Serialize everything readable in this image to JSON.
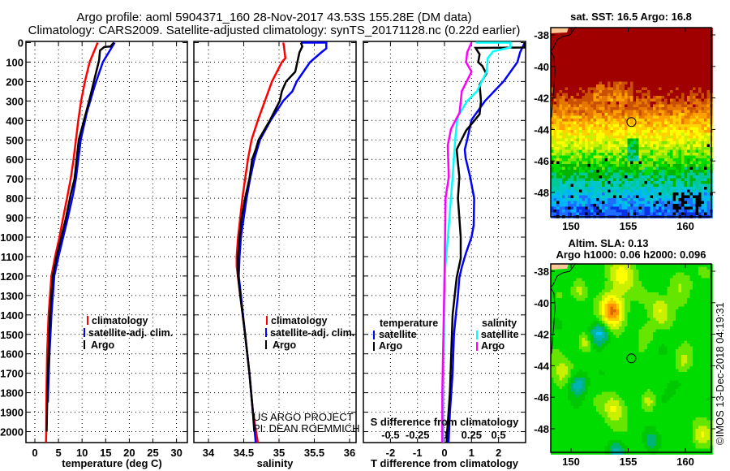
{
  "header": {
    "line1": "Argo profile: aoml 5904371_160 28-Nov-2017 43.53S 155.28E (DM data)",
    "line2": "Climatology: CARS2009. Satellite-adjusted climatology: synTS_20171128.nc (0.22d earlier)"
  },
  "credits": {
    "project": "US ARGO PROJECT",
    "pi": "PI: DEAN ROEMMICH",
    "stamp": "©IMOS 13-Dec-2018 04:19:31"
  },
  "chart_data": [
    {
      "type": "line",
      "id": "temperature",
      "xlabel": "temperature (deg C)",
      "ylabel": "",
      "xlim": [
        -1.9,
        32
      ],
      "ylim": [
        2056,
        0
      ],
      "xticks": [
        "0",
        "5",
        "10",
        "15",
        "20",
        "25",
        "30"
      ],
      "yticks": [
        "0",
        "100",
        "200",
        "300",
        "400",
        "500",
        "600",
        "700",
        "800",
        "900",
        "1000",
        "1100",
        "1200",
        "1300",
        "1400",
        "1500",
        "1600",
        "1700",
        "1800",
        "1900",
        "2000"
      ],
      "grid": true,
      "legend": {
        "placement": "lower-middle",
        "items": [
          "climatology",
          "satellite-adj. clim.",
          "Argo"
        ]
      },
      "series": [
        {
          "name": "climatology",
          "color": "#ff0000",
          "depth": [
            0,
            100,
            200,
            300,
            400,
            500,
            600,
            700,
            800,
            900,
            1000,
            1100,
            1200,
            1400,
            1600,
            1800,
            2000,
            2056
          ],
          "values": [
            13.3,
            11.6,
            10.6,
            9.8,
            9.2,
            8.7,
            8.2,
            7.6,
            6.8,
            6.0,
            5.2,
            4.3,
            3.5,
            2.9,
            2.6,
            2.45,
            2.4,
            2.35
          ]
        },
        {
          "name": "satellite-adj. clim.",
          "color": "#0000ff",
          "depth": [
            0,
            40,
            100,
            220,
            360,
            500,
            700,
            780,
            900,
            1000,
            1100,
            1200,
            1400,
            1600,
            1800,
            1850
          ],
          "values": [
            16.9,
            15.9,
            14.4,
            12.7,
            11.0,
            9.7,
            8.7,
            8.1,
            7.0,
            6.0,
            5.0,
            4.1,
            3.5,
            3.1,
            2.8,
            2.75
          ]
        },
        {
          "name": "Argo",
          "color": "#000000",
          "depth": [
            0,
            20,
            22,
            40,
            90,
            180,
            300,
            500,
            700,
            780,
            900,
            1000,
            1100,
            1200,
            1400,
            1600,
            1800,
            2000
          ],
          "values": [
            16.7,
            16.0,
            14.7,
            13.8,
            13.6,
            12.7,
            11.5,
            9.3,
            8.4,
            7.6,
            6.6,
            5.6,
            4.6,
            3.8,
            3.2,
            2.9,
            2.65,
            2.5
          ]
        }
      ]
    },
    {
      "type": "line",
      "id": "salinity",
      "xlabel": "salinity",
      "xlim": [
        33.8,
        36.1
      ],
      "ylim": [
        2056,
        0
      ],
      "xticks": [
        "34",
        "34.5",
        "35",
        "35.5",
        "36"
      ],
      "grid": true,
      "legend": {
        "placement": "lower-middle",
        "items": [
          "climatology",
          "satellite-adj. clim.",
          "Argo"
        ]
      },
      "series": [
        {
          "name": "climatology",
          "color": "#ff0000",
          "depth": [
            0,
            20,
            80,
            100,
            200,
            300,
            400,
            500,
            600,
            700,
            800,
            900,
            1000,
            1100,
            1150,
            1300,
            1500,
            1700,
            1900,
            2056
          ],
          "values": [
            35.06,
            35.07,
            35.09,
            35.04,
            34.9,
            34.8,
            34.7,
            34.61,
            34.56,
            34.52,
            34.48,
            34.45,
            34.42,
            34.4,
            34.4,
            34.45,
            34.52,
            34.58,
            34.63,
            34.7
          ]
        },
        {
          "name": "satellite-adj. clim.",
          "color": "#0000ff",
          "depth": [
            0,
            0.1,
            30,
            50,
            100,
            200,
            250,
            300,
            400,
            500,
            600,
            700,
            800,
            900,
            1000,
            1100,
            1200,
            1300,
            1500,
            1700,
            1900,
            2056
          ],
          "values": [
            35.31,
            35.67,
            35.67,
            35.6,
            35.44,
            35.25,
            35.19,
            35.06,
            34.88,
            34.73,
            34.65,
            34.59,
            34.54,
            34.5,
            34.46,
            34.44,
            34.43,
            34.46,
            34.52,
            34.58,
            34.63,
            34.67
          ]
        },
        {
          "name": "Argo",
          "color": "#000000",
          "depth": [
            0,
            20,
            50,
            100,
            150,
            200,
            250,
            300,
            350,
            400,
            500,
            550,
            600,
            700,
            800,
            900,
            1000,
            1100,
            1200,
            1300,
            1500,
            1700,
            1900,
            2000
          ],
          "values": [
            35.31,
            35.33,
            35.29,
            35.26,
            35.23,
            35.1,
            35.04,
            35.01,
            34.94,
            34.87,
            34.71,
            34.67,
            34.62,
            34.58,
            34.52,
            34.47,
            34.44,
            34.42,
            34.42,
            34.45,
            34.52,
            34.58,
            34.63,
            34.65
          ]
        }
      ]
    },
    {
      "type": "line",
      "id": "difference",
      "xlabel": "T difference from climatology",
      "secondary_xlabel": "S difference from climatology",
      "xlim": [
        -3,
        3
      ],
      "s_xlim": [
        -0.75,
        0.75
      ],
      "ylim": [
        2056,
        0
      ],
      "xticks": [
        "-2",
        "-1",
        "0",
        "1",
        "2"
      ],
      "s_xticks": [
        "-0.5",
        "-0.25",
        "0",
        "0.25",
        "0.5"
      ],
      "grid": true,
      "legend": {
        "temperature_title": "temperature",
        "salinity_title": "salinity",
        "items": [
          "satellite",
          "Argo"
        ]
      },
      "series": [
        {
          "name": "temperature satellite",
          "axis": "T",
          "color": "#0000ff",
          "depth": [
            0,
            20,
            50,
            100,
            197,
            300,
            397,
            494,
            550,
            592,
            690,
            800,
            940,
            1000,
            1080,
            1150,
            1208,
            1300,
            1400,
            1500,
            1700,
            1900,
            2056
          ],
          "values": [
            3.0,
            2.9,
            2.8,
            2.7,
            2.2,
            1.5,
            1.0,
            0.85,
            0.75,
            0.78,
            0.95,
            1.1,
            1.08,
            1.0,
            0.8,
            0.65,
            0.55,
            0.5,
            0.42,
            0.35,
            0.3,
            0.2,
            0.15
          ]
        },
        {
          "name": "temperature Argo",
          "axis": "T",
          "color": "#000000",
          "depth": [
            0,
            25,
            27,
            60,
            100,
            120,
            160,
            215,
            300,
            368,
            410,
            452,
            550,
            690,
            800,
            1000,
            1110,
            1208,
            1400,
            1600,
            1800,
            2000,
            2056
          ],
          "values": [
            3.0,
            3.0,
            1.15,
            1.3,
            1.25,
            1.4,
            1.55,
            1.3,
            1.35,
            1.3,
            1.05,
            0.8,
            0.45,
            0.55,
            0.5,
            0.6,
            0.6,
            0.45,
            0.3,
            0.25,
            0.2,
            0.1,
            0.08
          ]
        },
        {
          "name": "salinity satellite",
          "axis": "S",
          "color": "#00ffff",
          "depth": [
            0,
            0.1,
            25,
            45,
            80,
            150,
            250,
            300,
            383,
            494,
            690,
            940,
            1208,
            1500,
            1800,
            2056
          ],
          "values": [
            0.29,
            0.61,
            0.61,
            0.45,
            0.4,
            0.39,
            0.3,
            0.21,
            0.12,
            0.1,
            0.075,
            0.04,
            0.0,
            -0.005,
            -0.01,
            -0.01
          ]
        },
        {
          "name": "salinity Argo",
          "axis": "S",
          "color": "#ff00ff",
          "depth": [
            0,
            50,
            100,
            150,
            250,
            360,
            444,
            530,
            690,
            800,
            1208,
            1500,
            1800,
            2056
          ],
          "values": [
            0.25,
            0.21,
            0.2,
            0.25,
            0.16,
            0.14,
            0.06,
            0.03,
            0.04,
            0.01,
            0.0,
            -0.01,
            -0.02,
            -0.02
          ]
        }
      ]
    },
    {
      "type": "heatmap",
      "id": "sst-map",
      "title": "sat. SST: 16.5 Argo: 16.8",
      "xticks": [
        "150",
        "155",
        "160"
      ],
      "yticks": [
        "-38",
        "-40",
        "-42",
        "-44",
        "-46",
        "-48"
      ],
      "xlim": [
        148.2,
        162.3
      ],
      "ylim": [
        -49.5,
        -37.5
      ],
      "argo_position": {
        "lon": 155.28,
        "lat": -43.53
      }
    },
    {
      "type": "heatmap",
      "id": "sla-map",
      "title": "Altim. SLA: 0.13",
      "subtitle": "Argo h1000: 0.06 h2000: 0.096",
      "xticks": [
        "150",
        "155",
        "160"
      ],
      "yticks": [
        "-38",
        "-40",
        "-42",
        "-44",
        "-46",
        "-48"
      ],
      "xlim": [
        148.2,
        162.3
      ],
      "ylim": [
        -49.5,
        -37.5
      ],
      "argo_position": {
        "lon": 155.28,
        "lat": -43.53
      }
    }
  ]
}
